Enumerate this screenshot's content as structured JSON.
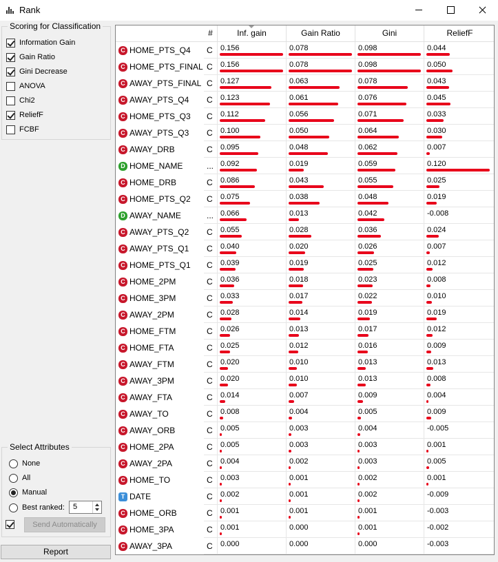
{
  "window": {
    "title": "Rank"
  },
  "scoring": {
    "title": "Scoring for Classification",
    "methods": [
      {
        "label": "Information Gain",
        "checked": true
      },
      {
        "label": "Gain Ratio",
        "checked": true
      },
      {
        "label": "Gini Decrease",
        "checked": true
      },
      {
        "label": "ANOVA",
        "checked": false
      },
      {
        "label": "Chi2",
        "checked": false
      },
      {
        "label": "ReliefF",
        "checked": true
      },
      {
        "label": "FCBF",
        "checked": false
      }
    ]
  },
  "select_attributes": {
    "title": "Select Attributes",
    "options": [
      {
        "label": "None",
        "selected": false
      },
      {
        "label": "All",
        "selected": false
      },
      {
        "label": "Manual",
        "selected": true
      },
      {
        "label": "Best ranked:",
        "selected": false
      }
    ],
    "best_ranked_value": "5",
    "send_auto_checked": true,
    "send_button_label": "Send Automatically"
  },
  "report_label": "Report",
  "table": {
    "headers": [
      "",
      "#",
      "Inf. gain",
      "Gain Ratio",
      "Gini",
      "ReliefF"
    ],
    "colors": {
      "bar": "#e8001a",
      "continuous": "#c7172b",
      "discrete": "#2ca02c",
      "time": "#3c8fd9"
    },
    "max_values": [
      0.156,
      0.078,
      0.098,
      0.12
    ],
    "rows": [
      {
        "badge": "C",
        "name": "HOME_PTS_Q4",
        "type": "C",
        "values": [
          "0.156",
          "0.078",
          "0.098",
          "0.044"
        ]
      },
      {
        "badge": "C",
        "name": "HOME_PTS_FINAL",
        "type": "C",
        "values": [
          "0.156",
          "0.078",
          "0.098",
          "0.050"
        ]
      },
      {
        "badge": "C",
        "name": "AWAY_PTS_FINAL",
        "type": "C",
        "values": [
          "0.127",
          "0.063",
          "0.078",
          "0.043"
        ]
      },
      {
        "badge": "C",
        "name": "AWAY_PTS_Q4",
        "type": "C",
        "values": [
          "0.123",
          "0.061",
          "0.076",
          "0.045"
        ]
      },
      {
        "badge": "C",
        "name": "HOME_PTS_Q3",
        "type": "C",
        "values": [
          "0.112",
          "0.056",
          "0.071",
          "0.033"
        ]
      },
      {
        "badge": "C",
        "name": "AWAY_PTS_Q3",
        "type": "C",
        "values": [
          "0.100",
          "0.050",
          "0.064",
          "0.030"
        ]
      },
      {
        "badge": "C",
        "name": "AWAY_DRB",
        "type": "C",
        "values": [
          "0.095",
          "0.048",
          "0.062",
          "0.007"
        ]
      },
      {
        "badge": "D",
        "name": "HOME_NAME",
        "type": "...",
        "values": [
          "0.092",
          "0.019",
          "0.059",
          "0.120"
        ]
      },
      {
        "badge": "C",
        "name": "HOME_DRB",
        "type": "C",
        "values": [
          "0.086",
          "0.043",
          "0.055",
          "0.025"
        ]
      },
      {
        "badge": "C",
        "name": "HOME_PTS_Q2",
        "type": "C",
        "values": [
          "0.075",
          "0.038",
          "0.048",
          "0.019"
        ]
      },
      {
        "badge": "D",
        "name": "AWAY_NAME",
        "type": "...",
        "values": [
          "0.066",
          "0.013",
          "0.042",
          "-0.008"
        ]
      },
      {
        "badge": "C",
        "name": "AWAY_PTS_Q2",
        "type": "C",
        "values": [
          "0.055",
          "0.028",
          "0.036",
          "0.024"
        ]
      },
      {
        "badge": "C",
        "name": "AWAY_PTS_Q1",
        "type": "C",
        "values": [
          "0.040",
          "0.020",
          "0.026",
          "0.007"
        ]
      },
      {
        "badge": "C",
        "name": "HOME_PTS_Q1",
        "type": "C",
        "values": [
          "0.039",
          "0.019",
          "0.025",
          "0.012"
        ]
      },
      {
        "badge": "C",
        "name": "HOME_2PM",
        "type": "C",
        "values": [
          "0.036",
          "0.018",
          "0.023",
          "0.008"
        ]
      },
      {
        "badge": "C",
        "name": "HOME_3PM",
        "type": "C",
        "values": [
          "0.033",
          "0.017",
          "0.022",
          "0.010"
        ]
      },
      {
        "badge": "C",
        "name": "AWAY_2PM",
        "type": "C",
        "values": [
          "0.028",
          "0.014",
          "0.019",
          "0.019"
        ]
      },
      {
        "badge": "C",
        "name": "HOME_FTM",
        "type": "C",
        "values": [
          "0.026",
          "0.013",
          "0.017",
          "0.012"
        ]
      },
      {
        "badge": "C",
        "name": "HOME_FTA",
        "type": "C",
        "values": [
          "0.025",
          "0.012",
          "0.016",
          "0.009"
        ]
      },
      {
        "badge": "C",
        "name": "AWAY_FTM",
        "type": "C",
        "values": [
          "0.020",
          "0.010",
          "0.013",
          "0.013"
        ]
      },
      {
        "badge": "C",
        "name": "AWAY_3PM",
        "type": "C",
        "values": [
          "0.020",
          "0.010",
          "0.013",
          "0.008"
        ]
      },
      {
        "badge": "C",
        "name": "AWAY_FTA",
        "type": "C",
        "values": [
          "0.014",
          "0.007",
          "0.009",
          "0.004"
        ]
      },
      {
        "badge": "C",
        "name": "AWAY_TO",
        "type": "C",
        "values": [
          "0.008",
          "0.004",
          "0.005",
          "0.009"
        ]
      },
      {
        "badge": "C",
        "name": "AWAY_ORB",
        "type": "C",
        "values": [
          "0.005",
          "0.003",
          "0.004",
          "-0.005"
        ]
      },
      {
        "badge": "C",
        "name": "HOME_2PA",
        "type": "C",
        "values": [
          "0.005",
          "0.003",
          "0.003",
          "0.001"
        ]
      },
      {
        "badge": "C",
        "name": "AWAY_2PA",
        "type": "C",
        "values": [
          "0.004",
          "0.002",
          "0.003",
          "0.005"
        ]
      },
      {
        "badge": "C",
        "name": "HOME_TO",
        "type": "C",
        "values": [
          "0.003",
          "0.001",
          "0.002",
          "0.001"
        ]
      },
      {
        "badge": "T",
        "name": "DATE",
        "type": "C",
        "values": [
          "0.002",
          "0.001",
          "0.002",
          "-0.009"
        ]
      },
      {
        "badge": "C",
        "name": "HOME_ORB",
        "type": "C",
        "values": [
          "0.001",
          "0.001",
          "0.001",
          "-0.003"
        ]
      },
      {
        "badge": "C",
        "name": "HOME_3PA",
        "type": "C",
        "values": [
          "0.001",
          "0.000",
          "0.001",
          "-0.002"
        ]
      },
      {
        "badge": "C",
        "name": "AWAY_3PA",
        "type": "C",
        "values": [
          "0.000",
          "0.000",
          "0.000",
          "-0.003"
        ]
      }
    ]
  }
}
